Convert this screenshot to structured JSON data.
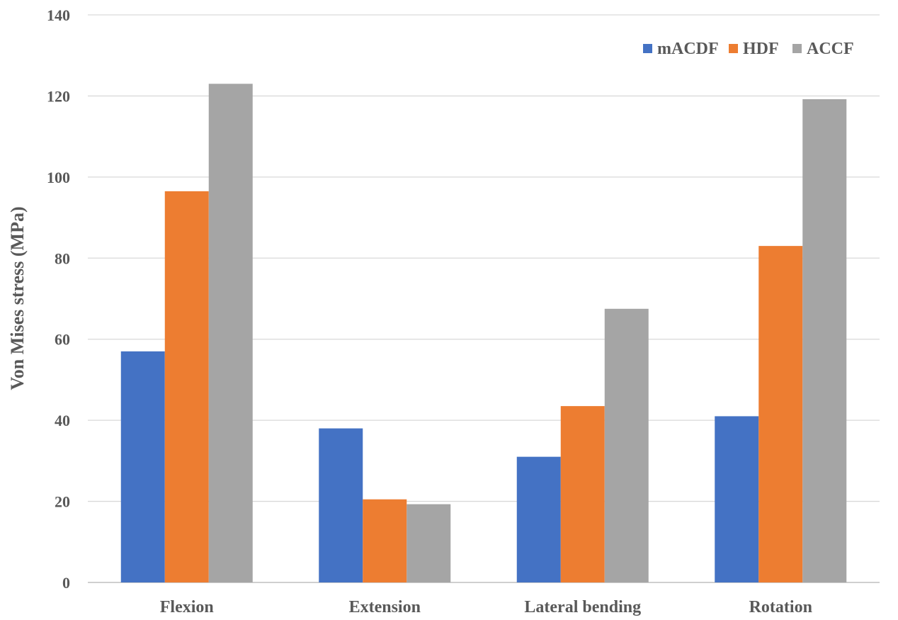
{
  "chart_data": {
    "type": "bar",
    "title": "",
    "xlabel": "",
    "ylabel": "Von Mises stress (MPa)",
    "ylim": [
      0,
      140
    ],
    "yticks": [
      0,
      20,
      40,
      60,
      80,
      100,
      120,
      140
    ],
    "grid": true,
    "legend_position": "top-right",
    "categories": [
      "Flexion",
      "Extension",
      "Lateral bending",
      "Rotation"
    ],
    "series": [
      {
        "name": "mACDF",
        "color": "#4472c4",
        "values": [
          57,
          38,
          31,
          41
        ]
      },
      {
        "name": "HDF",
        "color": "#ed7d31",
        "values": [
          96.5,
          20.5,
          43.5,
          83
        ]
      },
      {
        "name": "ACCF",
        "color": "#a5a5a5",
        "values": [
          123,
          19.3,
          67.5,
          119.2
        ]
      }
    ]
  }
}
